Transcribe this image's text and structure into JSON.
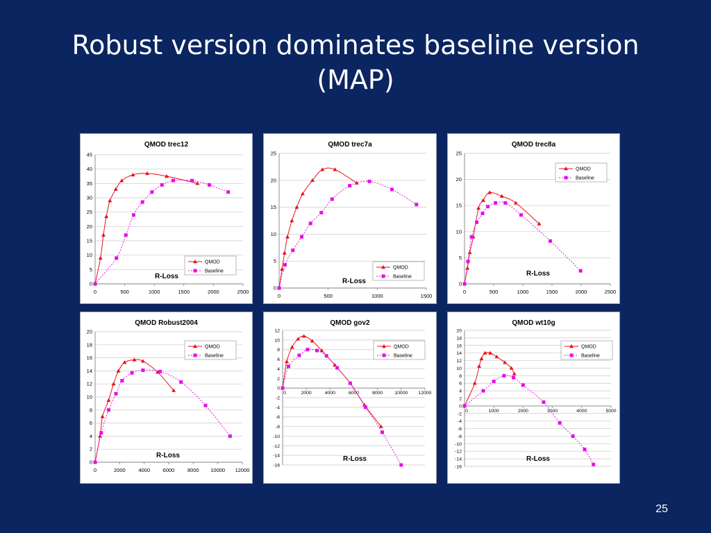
{
  "slide": {
    "title_line1": "Robust version dominates baseline version",
    "title_line2": "(MAP)",
    "page_number": "25"
  },
  "colors": {
    "background": "#0b2560",
    "qmod": "#e8111b",
    "baseline": "#e610e6"
  },
  "chart_data": [
    {
      "type": "line",
      "title": "QMOD trec12",
      "xlabel": "R-Loss",
      "ylabel": "",
      "xlim": [
        0,
        2500
      ],
      "xticks": [
        0,
        500,
        1000,
        1500,
        2000,
        2500
      ],
      "ylim": [
        0,
        45
      ],
      "yticks": [
        0,
        5,
        10,
        15,
        20,
        25,
        30,
        35,
        40,
        45
      ],
      "legend": "bottom-right",
      "series": [
        {
          "name": "QMOD",
          "x": [
            0,
            90,
            140,
            190,
            250,
            350,
            450,
            640,
            880,
            1210,
            1730
          ],
          "y": [
            0,
            9,
            17,
            23.5,
            29,
            33,
            36,
            38,
            38.5,
            37.5,
            35
          ]
        },
        {
          "name": "Baseline",
          "x": [
            0,
            360,
            520,
            650,
            800,
            960,
            1130,
            1320,
            1640,
            1930,
            2250
          ],
          "y": [
            0,
            9,
            17,
            24,
            28.5,
            32,
            34.5,
            36,
            36,
            34.5,
            32
          ]
        }
      ]
    },
    {
      "type": "line",
      "title": "QMOD trec7a",
      "xlabel": "R-Loss",
      "ylabel": "",
      "xlim": [
        0,
        1500
      ],
      "xticks": [
        0,
        500,
        1000,
        1500
      ],
      "ylim": [
        0,
        25
      ],
      "yticks": [
        0,
        5,
        10,
        15,
        20,
        25
      ],
      "legend": "bottom-right",
      "series": [
        {
          "name": "QMOD",
          "x": [
            0,
            30,
            55,
            85,
            130,
            180,
            240,
            340,
            440,
            570,
            790
          ],
          "y": [
            0,
            3.5,
            6.5,
            9.5,
            12.5,
            15,
            17.5,
            20,
            22,
            22,
            19.5
          ]
        },
        {
          "name": "Baseline",
          "x": [
            0,
            60,
            140,
            230,
            320,
            430,
            540,
            720,
            920,
            1150,
            1400
          ],
          "y": [
            0,
            4.3,
            7,
            9.5,
            12,
            14,
            16.5,
            19,
            19.8,
            18.3,
            15.5
          ]
        }
      ]
    },
    {
      "type": "line",
      "title": "QMOD trec8a",
      "xlabel": "R-Loss",
      "ylabel": "",
      "xlim": [
        0,
        2500
      ],
      "xticks": [
        0,
        500,
        1000,
        1500,
        2000,
        2500
      ],
      "ylim": [
        0,
        25
      ],
      "yticks": [
        0,
        5,
        10,
        15,
        20,
        25
      ],
      "legend": "top-right",
      "series": [
        {
          "name": "QMOD",
          "x": [
            0,
            50,
            90,
            150,
            240,
            320,
            430,
            640,
            880,
            1280
          ],
          "y": [
            0,
            3,
            6,
            9,
            14.5,
            16,
            17.5,
            16.8,
            15.5,
            11.5
          ]
        },
        {
          "name": "Baseline",
          "x": [
            0,
            60,
            120,
            210,
            310,
            400,
            530,
            700,
            970,
            1470,
            1990
          ],
          "y": [
            0,
            4.3,
            9,
            11.8,
            13.5,
            14.8,
            15.5,
            15.5,
            13.2,
            8.2,
            2.5
          ]
        }
      ]
    },
    {
      "type": "line",
      "title": "QMOD Robust2004",
      "xlabel": "R-Loss",
      "ylabel": "",
      "xlim": [
        0,
        12000
      ],
      "xticks": [
        0,
        2000,
        4000,
        6000,
        8000,
        10000,
        12000
      ],
      "ylim": [
        0,
        20
      ],
      "yticks": [
        0,
        2,
        4,
        6,
        8,
        10,
        12,
        14,
        16,
        18,
        20
      ],
      "legend": "top-right",
      "series": [
        {
          "name": "QMOD",
          "x": [
            0,
            400,
            600,
            1100,
            1500,
            1900,
            2400,
            3200,
            3900,
            5100,
            6400
          ],
          "y": [
            0,
            4,
            7,
            9.5,
            12,
            14,
            15.3,
            15.7,
            15.5,
            13.8,
            11
          ]
        },
        {
          "name": "Baseline",
          "x": [
            0,
            500,
            1100,
            1700,
            2200,
            3000,
            3900,
            5300,
            7000,
            9000,
            11000
          ],
          "y": [
            0,
            4.5,
            8,
            10.5,
            12.5,
            13.7,
            14.1,
            13.9,
            12.3,
            8.7,
            4
          ]
        }
      ]
    },
    {
      "type": "line",
      "title": "QMOD gov2",
      "xlabel": "R-Loss",
      "ylabel": "",
      "xlim": [
        0,
        12000
      ],
      "xticks": [
        0,
        2000,
        4000,
        6000,
        8000,
        10000,
        12000
      ],
      "ylim": [
        -16,
        12
      ],
      "yticks": [
        -16,
        -14,
        -12,
        -10,
        -8,
        -6,
        -4,
        -2,
        0,
        2,
        4,
        6,
        8,
        10,
        12
      ],
      "legend": "top-right",
      "series": [
        {
          "name": "QMOD",
          "x": [
            0,
            350,
            800,
            1300,
            1800,
            2500,
            3300,
            4400,
            5700,
            6900,
            8300
          ],
          "y": [
            0,
            5.5,
            8.5,
            10.2,
            10.8,
            9.8,
            7.8,
            4.8,
            1,
            -3.5,
            -8
          ]
        },
        {
          "name": "Baseline",
          "x": [
            0,
            500,
            1400,
            2100,
            2900,
            3700,
            4600,
            5700,
            7000,
            8400,
            10000
          ],
          "y": [
            0,
            4.5,
            6.8,
            8,
            7.8,
            6.7,
            4.2,
            1,
            -4,
            -9.2,
            -16
          ]
        }
      ]
    },
    {
      "type": "line",
      "title": "QMOD wt10g",
      "xlabel": "R-Loss",
      "ylabel": "",
      "xlim": [
        0,
        5000
      ],
      "xticks": [
        0,
        1000,
        2000,
        3000,
        4000,
        5000
      ],
      "ylim": [
        -16,
        20
      ],
      "yticks": [
        -16,
        -14,
        -12,
        -10,
        -8,
        -6,
        -4,
        -2,
        0,
        2,
        4,
        6,
        8,
        10,
        12,
        14,
        16,
        18,
        20
      ],
      "legend": "top-right",
      "series": [
        {
          "name": "QMOD",
          "x": [
            0,
            350,
            500,
            580,
            700,
            880,
            1100,
            1380,
            1600,
            1700
          ],
          "y": [
            0,
            6,
            10.5,
            12.5,
            14,
            14,
            13,
            11.5,
            10,
            8.5
          ]
        },
        {
          "name": "Baseline",
          "x": [
            0,
            640,
            1000,
            1350,
            1670,
            2000,
            2700,
            3250,
            3700,
            4100,
            4400
          ],
          "y": [
            0,
            4,
            6.5,
            8,
            7.5,
            5.5,
            1,
            -4.5,
            -8,
            -11.5,
            -15.5
          ]
        }
      ]
    }
  ]
}
